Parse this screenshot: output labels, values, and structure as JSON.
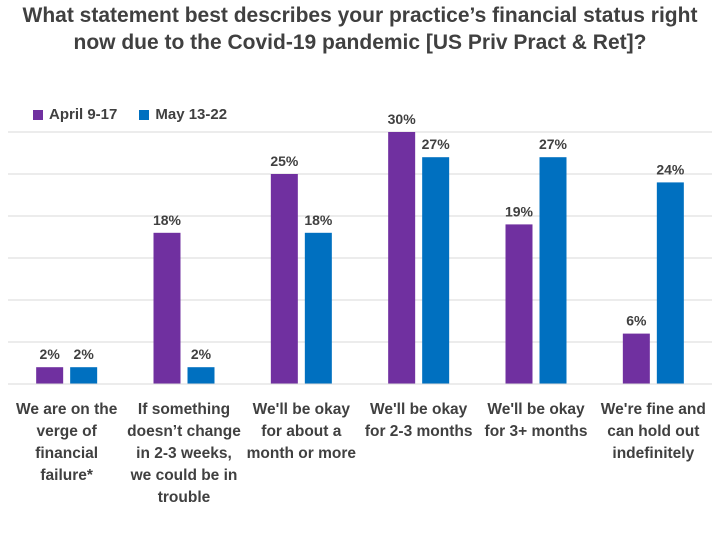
{
  "chart_data": {
    "type": "bar",
    "title": "What statement best describes your practice’s financial status right now due to the Covid-19 pandemic [US Priv Pract & Ret]?",
    "categories": [
      "We are on the verge of financial failure*",
      "If something doesn’t change in 2-3 weeks, we could be in trouble",
      "We'll be okay for about a month or more",
      "We'll be okay for 2-3 months",
      "We'll be okay for 3+ months",
      "We're fine and can hold out indefinitely"
    ],
    "series": [
      {
        "name": "April 9-17",
        "color": "#7030A0",
        "values": [
          2,
          18,
          25,
          30,
          19,
          6
        ]
      },
      {
        "name": "May 13-22",
        "color": "#0070C0",
        "values": [
          2,
          2,
          18,
          27,
          27,
          24
        ]
      }
    ],
    "value_suffix": "%",
    "ylim": [
      0,
      30
    ],
    "grid": true,
    "legend": "top-left",
    "xlabel": "",
    "ylabel": ""
  }
}
